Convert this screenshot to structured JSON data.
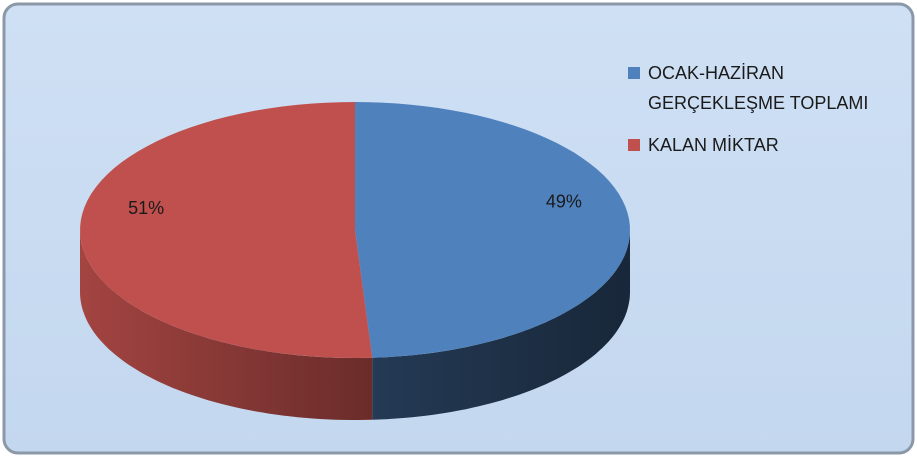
{
  "chart_data": {
    "type": "pie",
    "categories": [
      "OCAK-HAZİRAN GERÇEKLEŞME TOPLAMI",
      "KALAN MİKTAR"
    ],
    "values": [
      49,
      51
    ],
    "value_labels": [
      "49%",
      "51%"
    ],
    "colors": [
      "#4f81bd",
      "#c0504d"
    ],
    "legend": "right"
  }
}
